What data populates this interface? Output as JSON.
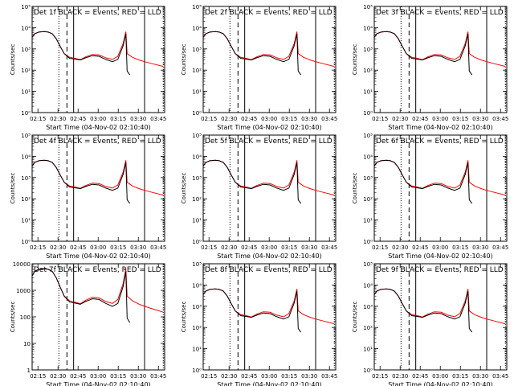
{
  "charts": [
    {
      "title": "Det 1f BLACK = Events, RED = LLD",
      "ylabel": "Counts/sec",
      "xlabel": "Start Time (04-Nov-02 02:10:40)"
    },
    {
      "title": "Det 2f BLACK = Events, RED = LLD",
      "ylabel": "Counts/sec",
      "xlabel": "Start Time (04-Nov-02 02:10:40)"
    },
    {
      "title": "Det 3f BLACK = Events, RED = LLD",
      "ylabel": "Counts/sec",
      "xlabel": "Start Time (04-Nov-02 02:10:40)"
    },
    {
      "title": "Det 4f BLACK = Events, RED = LLD",
      "ylabel": "Counts/sec",
      "xlabel": "Start Time (04-Nov-02 02:10:40)"
    },
    {
      "title": "Det 5f BLACK = Events, RED = LLD",
      "ylabel": "Counts/sec",
      "xlabel": "Start Time (04-Nov-02 02:10:40)"
    },
    {
      "title": "Det 6f BLACK = Events, RED = LLD",
      "ylabel": "Counts/sec",
      "xlabel": "Start Time (04-Nov-02 02:10:40)"
    },
    {
      "title": "Det 7f BLACK = Events, RED = LLD",
      "ylabel": "Counts/sec",
      "xlabel": "Start Time (04-Nov-02 02:10:40)"
    },
    {
      "title": "Det 8f BLACK = Events, RED = LLD",
      "ylabel": "Counts/sec",
      "xlabel": "Start Time (04-Nov-02 02:10:40)"
    },
    {
      "title": "Det 9f BLACK = Events, RED = LLD",
      "ylabel": "Counts/sec",
      "xlabel": "Start Time (04-Nov-02 02:10:40)"
    }
  ],
  "xticks": [
    "02:15",
    "02:30",
    "02:45",
    "03:00",
    "03:15",
    "03:30",
    "03:45"
  ],
  "yticks_exp": [
    "10⁰",
    "10¹",
    "10²",
    "10³",
    "10⁴",
    "10⁵"
  ],
  "yticks_dec": [
    "1",
    "10",
    "100",
    "1000",
    "10000"
  ],
  "colors": {
    "events": "#000000",
    "lld": "#ff0000"
  },
  "chart_data": {
    "type": "line",
    "yscale": "log",
    "x_unit": "minutes since 02:10:40",
    "xlim": [
      0,
      99
    ],
    "ylim": [
      1,
      100000
    ],
    "ylim_det7": [
      1,
      10000
    ],
    "markers": {
      "dotted": 20,
      "dashed": 26,
      "solid": 31,
      "right_solid": 84
    },
    "series": {
      "lld": [
        [
          0,
          3500
        ],
        [
          2,
          5200
        ],
        [
          5,
          6200
        ],
        [
          9,
          6500
        ],
        [
          12,
          6200
        ],
        [
          15,
          5200
        ],
        [
          18,
          3000
        ],
        [
          21,
          1300
        ],
        [
          24,
          600
        ],
        [
          28,
          400
        ],
        [
          32,
          360
        ],
        [
          36,
          310
        ],
        [
          40,
          420
        ],
        [
          45,
          550
        ],
        [
          50,
          520
        ],
        [
          55,
          380
        ],
        [
          60,
          320
        ],
        [
          64,
          450
        ],
        [
          68,
          1800
        ],
        [
          70,
          6500
        ],
        [
          71,
          600
        ],
        [
          75,
          400
        ],
        [
          80,
          300
        ],
        [
          84,
          250
        ],
        [
          90,
          200
        ],
        [
          98,
          150
        ]
      ],
      "events": [
        [
          0,
          3500
        ],
        [
          2,
          5200
        ],
        [
          5,
          6200
        ],
        [
          9,
          6500
        ],
        [
          12,
          6200
        ],
        [
          15,
          5200
        ],
        [
          18,
          3000
        ],
        [
          21,
          1300
        ],
        [
          24,
          600
        ],
        [
          28,
          360
        ],
        [
          32,
          330
        ],
        [
          36,
          300
        ],
        [
          40,
          380
        ],
        [
          45,
          480
        ],
        [
          50,
          450
        ],
        [
          55,
          320
        ],
        [
          60,
          250
        ],
        [
          64,
          320
        ],
        [
          68,
          1400
        ],
        [
          70,
          5000
        ],
        [
          71,
          90
        ],
        [
          73,
          60
        ]
      ]
    }
  }
}
